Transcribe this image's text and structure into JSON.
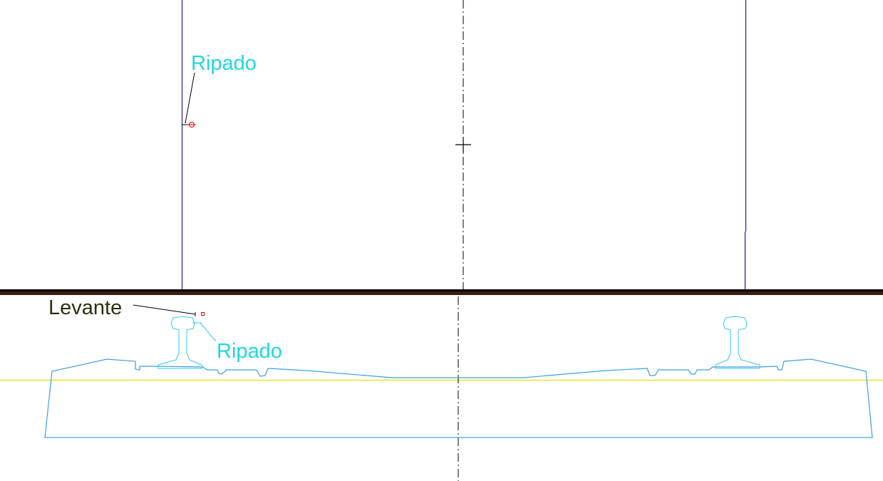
{
  "labels": {
    "ripado_top": "Ripado",
    "levante": "Levante",
    "ripado_bottom": "Ripado"
  },
  "colors": {
    "background": "#ffffff",
    "guide_line": "#2a1aa0",
    "separator": "#3a1c10",
    "separator_shadow": "#000000",
    "profile": "#3aa0e0",
    "rail": "#30c8f0",
    "level_line": "#f0e000",
    "centerline": "#000000",
    "marker": "#e00000",
    "label_cyan": "#1ED6E0",
    "label_dark": "#2e2e10"
  },
  "icons": {
    "cursor": "crosshair-cursor-icon",
    "target": "target-marker-icon",
    "point": "point-marker-icon"
  }
}
